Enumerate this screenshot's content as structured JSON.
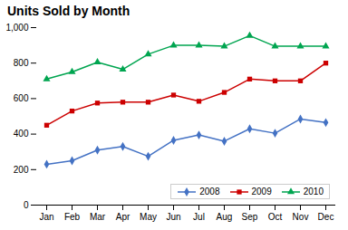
{
  "chart_data": {
    "type": "line",
    "title": "Units Sold by Month",
    "categories": [
      "Jan",
      "Feb",
      "Mar",
      "Apr",
      "May",
      "Jun",
      "Jul",
      "Aug",
      "Sep",
      "Oct",
      "Nov",
      "Dec"
    ],
    "series": [
      {
        "name": "2008",
        "color": "#4472C4",
        "marker": "diamond",
        "values": [
          230,
          250,
          310,
          330,
          275,
          365,
          395,
          360,
          430,
          405,
          485,
          465
        ]
      },
      {
        "name": "2009",
        "color": "#CC0000",
        "marker": "square",
        "values": [
          450,
          530,
          575,
          580,
          580,
          620,
          585,
          635,
          710,
          700,
          700,
          800
        ]
      },
      {
        "name": "2010",
        "color": "#00A550",
        "marker": "triangle",
        "values": [
          710,
          750,
          805,
          765,
          850,
          900,
          900,
          895,
          955,
          895,
          895,
          895
        ]
      }
    ],
    "ylim": [
      0,
      1000
    ],
    "yticks": [
      0,
      200,
      400,
      600,
      800,
      1000
    ],
    "legend": "lower right",
    "grid": false
  }
}
